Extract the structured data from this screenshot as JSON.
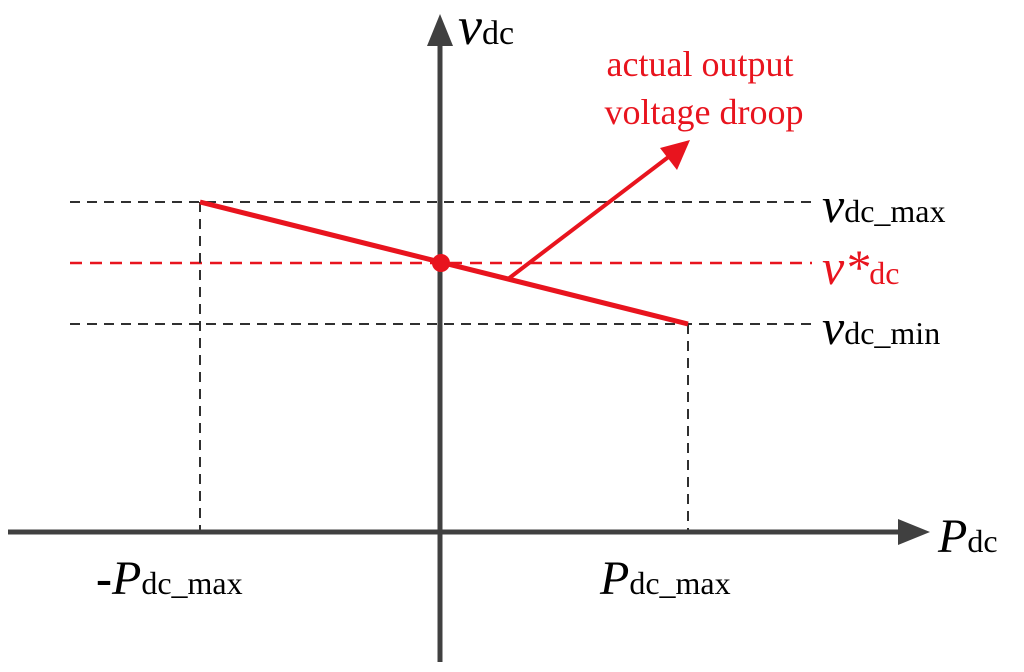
{
  "axes": {
    "y_label_main": "v",
    "y_label_sub": "dc",
    "x_label_main": "P",
    "x_label_sub": "dc"
  },
  "levels": {
    "vmax_main": "v",
    "vmax_sub": "dc_max",
    "vref_main": "v*",
    "vref_sub": "dc",
    "vmin_main": "v",
    "vmin_sub": "dc_min"
  },
  "ticks": {
    "neg_prefix": "-",
    "neg_main": "P",
    "neg_sub": "dc_max",
    "pos_main": "P",
    "pos_sub": "dc_max"
  },
  "annotation": {
    "line1": "actual output",
    "line2": "voltage droop"
  },
  "colors": {
    "axis": "#404040",
    "droop": "#e8141e",
    "reference_dash": "#e8141e",
    "guide_dash": "#303030"
  }
}
